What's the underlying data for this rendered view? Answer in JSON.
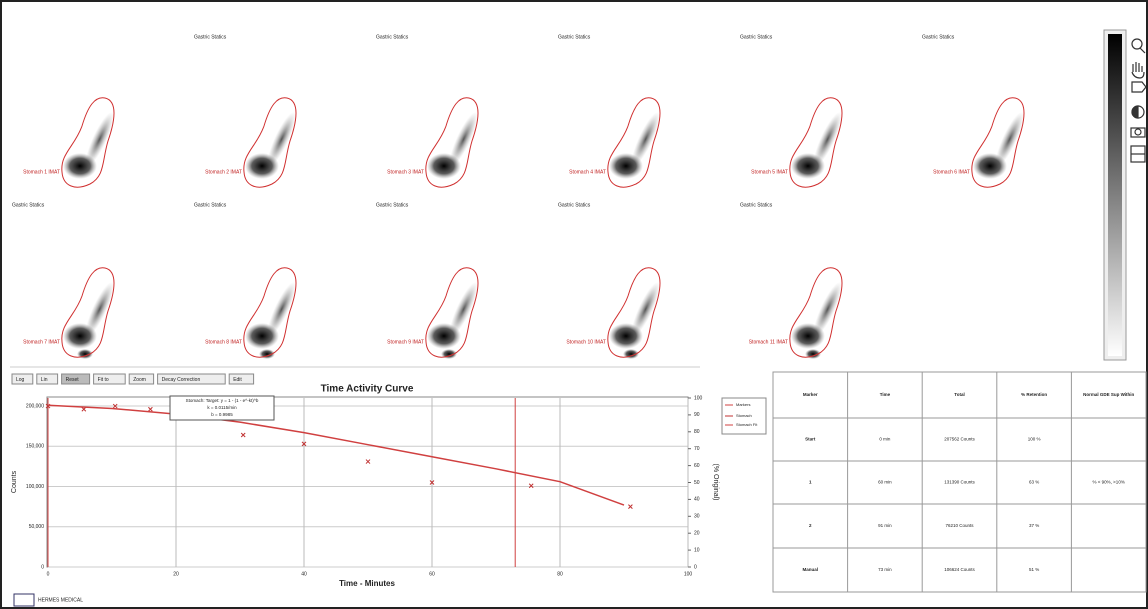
{
  "viewer": {
    "panels": [
      {
        "roi_label": "Stomach 1 IMAT"
      },
      {
        "title": "Gastric Statics",
        "roi_label": "Stomach 2 IMAT"
      },
      {
        "title": "Gastric Statics",
        "roi_label": "Stomach 3 IMAT"
      },
      {
        "title": "Gastric Statics",
        "roi_label": "Stomach 4 IMAT"
      },
      {
        "title": "Gastric Statics",
        "roi_label": "Stomach 5 IMAT"
      },
      {
        "title": "Gastric Statics",
        "roi_label": "Stomach 6 IMAT"
      },
      {
        "title": "Gastric Statics",
        "roi_label": "Stomach 7 IMAT"
      },
      {
        "title": "Gastric Statics",
        "roi_label": "Stomach 8 IMAT"
      },
      {
        "title": "Gastric Statics",
        "roi_label": "Stomach 9 IMAT"
      },
      {
        "title": "Gastric Statics",
        "roi_label": "Stomach 10 IMAT"
      },
      {
        "title": "Gastric Statics",
        "roi_label": "Stomach 11 IMAT"
      }
    ]
  },
  "toolbar": [
    "Log",
    "Lin",
    "Reset",
    "Fit to",
    "Zoom",
    "Decay Correction",
    "Edit"
  ],
  "chart_data": {
    "type": "line",
    "title": "Time Activity Curve",
    "x_label": "Time - Minutes",
    "y_label": "Counts",
    "y2_label": "(% Original)",
    "xlim": [
      0,
      100
    ],
    "xticks": [
      0,
      20,
      40,
      60,
      80,
      100
    ],
    "ylim": [
      0,
      210000
    ],
    "yticks": [
      0,
      {
        "value": 50000,
        "label": "50,000"
      },
      {
        "value": 100000,
        "label": "100,000"
      },
      {
        "value": 150000,
        "label": "150,000"
      },
      {
        "value": 200000,
        "label": "200,000"
      }
    ],
    "y2lim": [
      0,
      100
    ],
    "y2ticks": [
      0,
      10,
      20,
      30,
      40,
      50,
      60,
      70,
      80,
      90,
      100
    ],
    "grid": true,
    "annotation": [
      "Stomach: Target: y = 1 - (1 - e^-kt)^b",
      "k = 0.0115/min",
      "b = 0.9985"
    ],
    "markers": {
      "name": "Markers",
      "color": "#d04040",
      "x": [
        0,
        73
      ]
    },
    "series": [
      {
        "name": "Stomach",
        "color": "#c03030",
        "style": "points",
        "x": [
          0,
          5.6,
          10.5,
          16,
          25,
          30.5,
          40,
          50,
          60,
          75.5,
          91
        ],
        "values": [
          200000,
          196000,
          200000,
          196000,
          187000,
          164000,
          153000,
          131000,
          105000,
          101000,
          75000
        ]
      },
      {
        "name": "Stomach Fit",
        "color": "#d04040",
        "style": "line",
        "x": [
          0,
          10,
          20,
          30,
          40,
          50,
          60,
          70,
          80,
          90
        ],
        "values": [
          201000,
          197000,
          190000,
          180000,
          167000,
          152000,
          137000,
          122000,
          106000,
          77000
        ]
      }
    ]
  },
  "results_table": {
    "headers": [
      "Marker",
      "Time",
      "Total",
      "% Retention",
      "Normal GDE Sup Within"
    ],
    "rows": [
      [
        "Start",
        "0 min",
        "207562 Counts",
        "100 %",
        ""
      ],
      [
        "1",
        "60 min",
        "131390 Counts",
        "63 %",
        "% < 90%, >10%"
      ],
      [
        "2",
        "91 min",
        "76210 Counts",
        "37 %",
        ""
      ],
      [
        "Manual",
        "73 min",
        "106624 Counts",
        "51 %",
        ""
      ]
    ]
  },
  "footer": {
    "logo": "HERMES MEDICAL"
  }
}
